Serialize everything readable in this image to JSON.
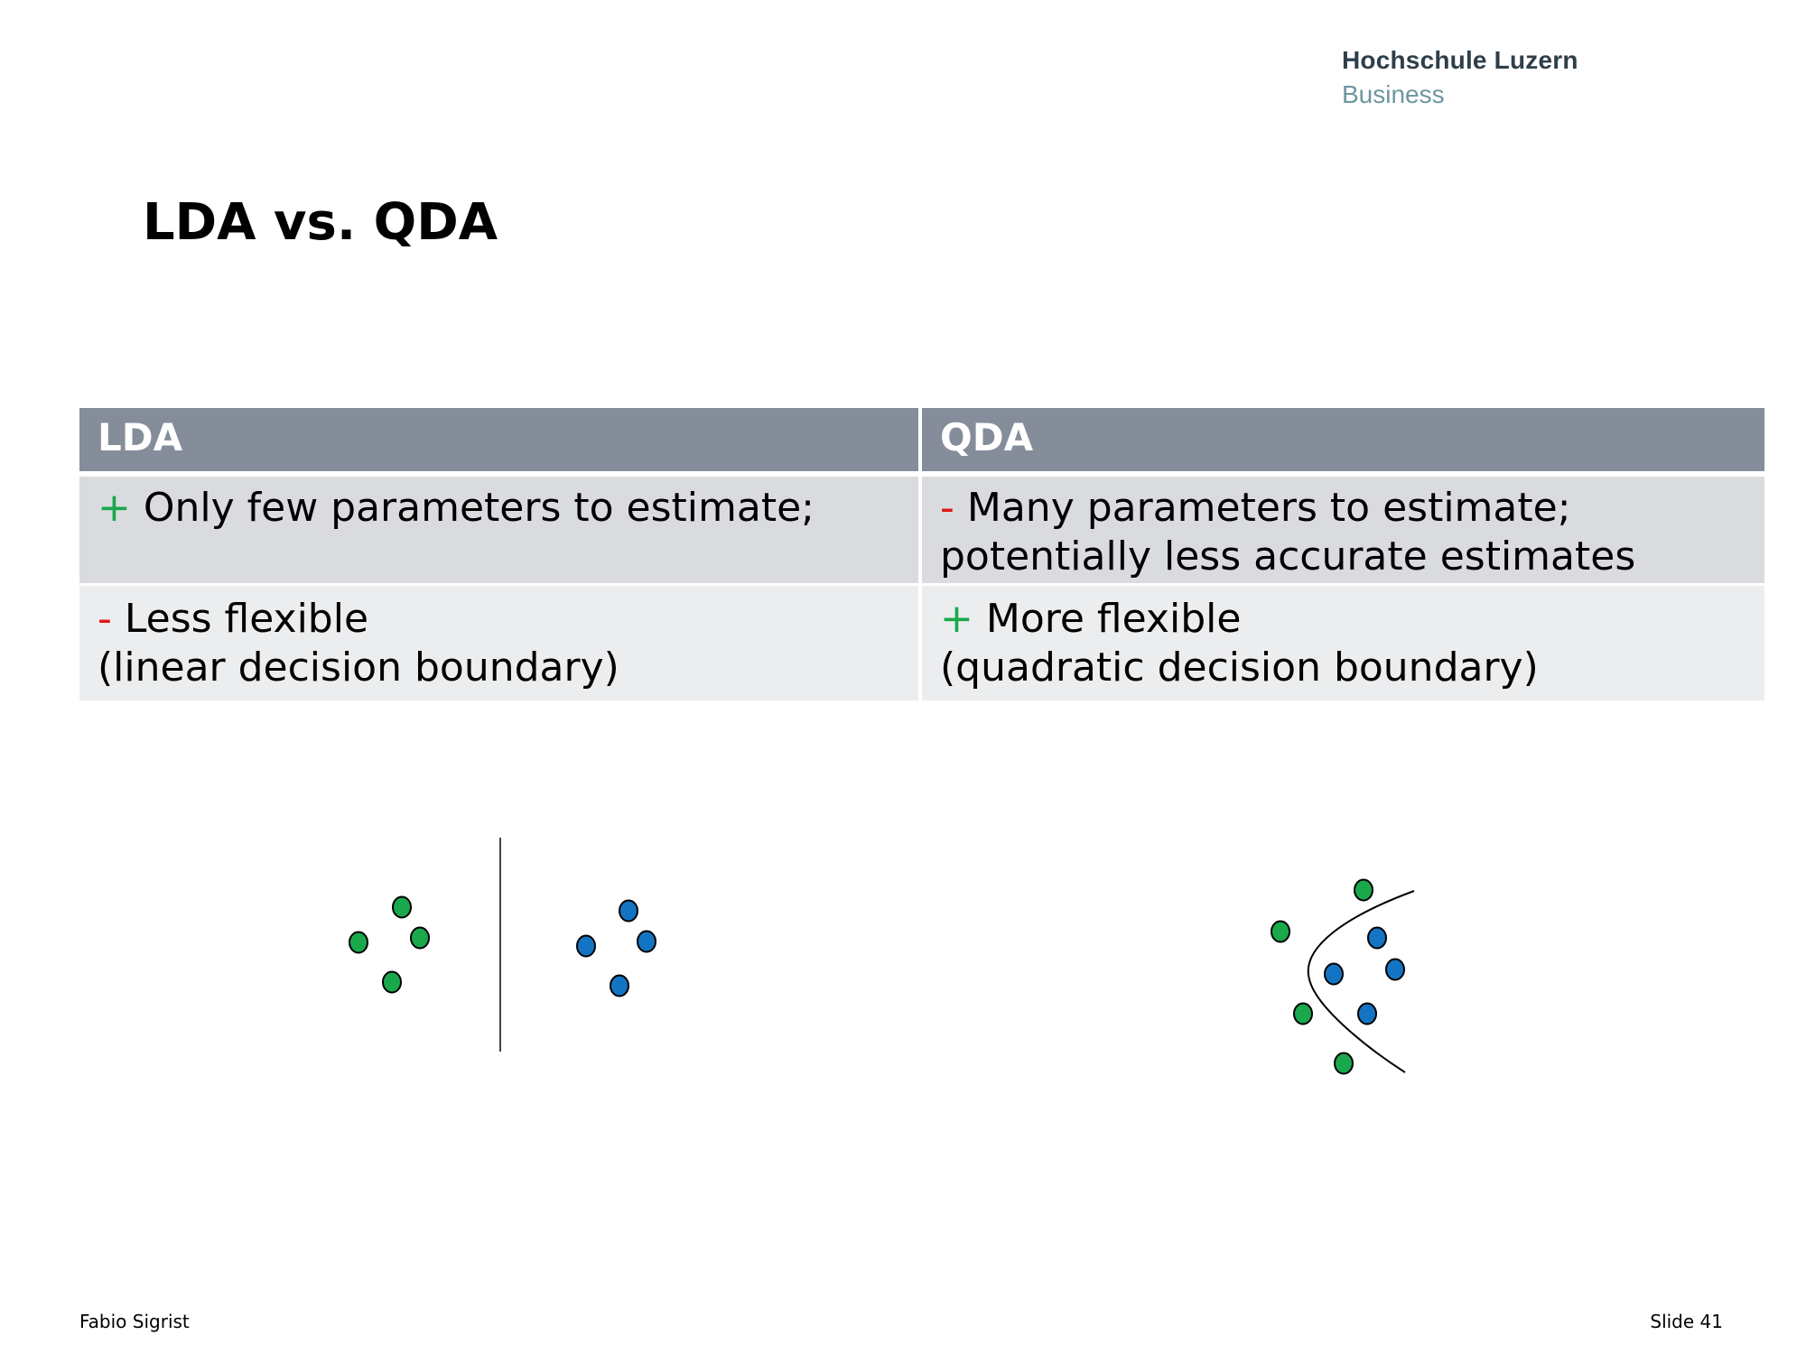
{
  "brand": {
    "line1": "Hochschule Luzern",
    "line2": "Business"
  },
  "slide_title": "LDA vs. QDA",
  "table": {
    "headers": [
      "LDA",
      "QDA"
    ],
    "rows": [
      [
        {
          "sign": "+",
          "text": " Only few parameters to estimate;",
          "line2": ""
        },
        {
          "sign": "-",
          "text": " Many parameters to estimate;",
          "line2": "potentially less accurate estimates"
        }
      ],
      [
        {
          "sign": "-",
          "text": " Less flexible",
          "line2": "(linear decision boundary)"
        },
        {
          "sign": "+",
          "text": " More flexible",
          "line2": "(quadratic decision boundary)"
        }
      ]
    ]
  },
  "illustrations": {
    "colors": {
      "green": "#1aa84c",
      "blue": "#1474c4",
      "outline": "#000000"
    },
    "lda_boundary": "linear",
    "qda_boundary": "quadratic"
  },
  "footer": {
    "author": "Fabio Sigrist",
    "slide": "Slide 41"
  }
}
